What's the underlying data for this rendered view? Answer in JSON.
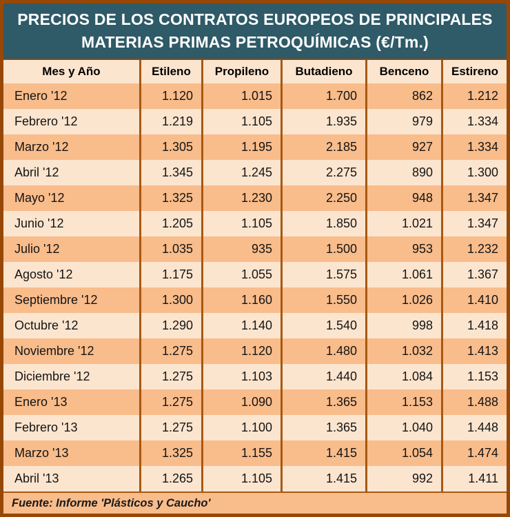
{
  "title": {
    "line1": "PRECIOS DE LOS CONTRATOS EUROPEOS DE PRINCIPALES",
    "line2": "MATERIAS PRIMAS PETROQUÍMICAS (€/Tm.)"
  },
  "table": {
    "columns": [
      "Mes y Año",
      "Etileno",
      "Propileno",
      "Butadieno",
      "Benceno",
      "Estireno"
    ],
    "rows": [
      {
        "month": "Enero '12",
        "values": [
          "1.120",
          "1.015",
          "1.700",
          "862",
          "1.212"
        ]
      },
      {
        "month": "Febrero '12",
        "values": [
          "1.219",
          "1.105",
          "1.935",
          "979",
          "1.334"
        ]
      },
      {
        "month": "Marzo '12",
        "values": [
          "1.305",
          "1.195",
          "2.185",
          "927",
          "1.334"
        ]
      },
      {
        "month": "Abril '12",
        "values": [
          "1.345",
          "1.245",
          "2.275",
          "890",
          "1.300"
        ]
      },
      {
        "month": "Mayo '12",
        "values": [
          "1.325",
          "1.230",
          "2.250",
          "948",
          "1.347"
        ]
      },
      {
        "month": "Junio '12",
        "values": [
          "1.205",
          "1.105",
          "1.850",
          "1.021",
          "1.347"
        ]
      },
      {
        "month": "Julio '12",
        "values": [
          "1.035",
          "935",
          "1.500",
          "953",
          "1.232"
        ]
      },
      {
        "month": "Agosto '12",
        "values": [
          "1.175",
          "1.055",
          "1.575",
          "1.061",
          "1.367"
        ]
      },
      {
        "month": "Septiembre '12",
        "values": [
          "1.300",
          "1.160",
          "1.550",
          "1.026",
          "1.410"
        ]
      },
      {
        "month": "Octubre '12",
        "values": [
          "1.290",
          "1.140",
          "1.540",
          "998",
          "1.418"
        ]
      },
      {
        "month": "Noviembre '12",
        "values": [
          "1.275",
          "1.120",
          "1.480",
          "1.032",
          "1.413"
        ]
      },
      {
        "month": "Diciembre '12",
        "values": [
          "1.275",
          "1.103",
          "1.440",
          "1.084",
          "1.153"
        ]
      },
      {
        "month": "Enero '13",
        "values": [
          "1.275",
          "1.090",
          "1.365",
          "1.153",
          "1.488"
        ]
      },
      {
        "month": "Febrero '13",
        "values": [
          "1.275",
          "1.100",
          "1.365",
          "1.040",
          "1.448"
        ]
      },
      {
        "month": "Marzo '13",
        "values": [
          "1.325",
          "1.155",
          "1.415",
          "1.054",
          "1.474"
        ]
      },
      {
        "month": "Abril '13",
        "values": [
          "1.265",
          "1.105",
          "1.415",
          "992",
          "1.411"
        ]
      }
    ]
  },
  "footer": {
    "source": "Fuente: Informe 'Plásticos y Caucho'"
  },
  "colors": {
    "title_background": "#2F5A68",
    "title_text": "#FFFFFF",
    "outer_border": "#974806",
    "column_separator": "#A65911",
    "row_dark": "#F9BC8B",
    "row_light": "#FCE5CF",
    "header_background": "#FCE5CF",
    "text": "#141414"
  },
  "chart_data": {
    "type": "table",
    "title": "PRECIOS DE LOS CONTRATOS EUROPEOS DE PRINCIPALES MATERIAS PRIMAS PETROQUÍMICAS (€/Tm.)",
    "units": "€/Tm.",
    "categories": [
      "Enero '12",
      "Febrero '12",
      "Marzo '12",
      "Abril '12",
      "Mayo '12",
      "Junio '12",
      "Julio '12",
      "Agosto '12",
      "Septiembre '12",
      "Octubre '12",
      "Noviembre '12",
      "Diciembre '12",
      "Enero '13",
      "Febrero '13",
      "Marzo '13",
      "Abril '13"
    ],
    "series": [
      {
        "name": "Etileno",
        "values": [
          1120,
          1219,
          1305,
          1345,
          1325,
          1205,
          1035,
          1175,
          1300,
          1290,
          1275,
          1275,
          1275,
          1275,
          1325,
          1265
        ]
      },
      {
        "name": "Propileno",
        "values": [
          1015,
          1105,
          1195,
          1245,
          1230,
          1105,
          935,
          1055,
          1160,
          1140,
          1120,
          1103,
          1090,
          1100,
          1155,
          1105
        ]
      },
      {
        "name": "Butadieno",
        "values": [
          1700,
          1935,
          2185,
          2275,
          2250,
          1850,
          1500,
          1575,
          1550,
          1540,
          1480,
          1440,
          1365,
          1365,
          1415,
          1415
        ]
      },
      {
        "name": "Benceno",
        "values": [
          862,
          979,
          927,
          890,
          948,
          1021,
          953,
          1061,
          1026,
          998,
          1032,
          1084,
          1153,
          1040,
          1054,
          992
        ]
      },
      {
        "name": "Estireno",
        "values": [
          1212,
          1334,
          1334,
          1300,
          1347,
          1347,
          1232,
          1367,
          1410,
          1418,
          1413,
          1153,
          1488,
          1448,
          1474,
          1411
        ]
      }
    ],
    "source_note": "Fuente: Informe 'Plásticos y Caucho'"
  }
}
